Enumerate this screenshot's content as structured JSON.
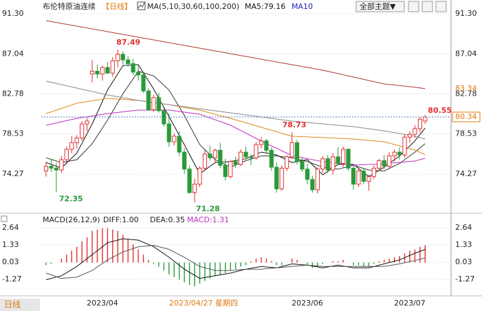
{
  "chart_data": {
    "type": "candlestick",
    "title": "布伦特原油连续",
    "period": "【日线】",
    "ma_legend": [
      "MA(5,10,30,60,100,200)",
      "MA5:79.16",
      "MA10"
    ],
    "theme_button": "全部主题▼",
    "macd_legend": [
      "MACD(26,12,9)",
      "DIFF:1.00",
      "DEA:0.35",
      "MACD:1.31"
    ],
    "period_tab": "日线",
    "crosshair_label": "2023/04/27 星期四",
    "categories": [
      null,
      null,
      null,
      null,
      null,
      null,
      null,
      null,
      null,
      null,
      null,
      "2023/04",
      null,
      null,
      null,
      null,
      null,
      null,
      null,
      null,
      null,
      null,
      null,
      null,
      null,
      null,
      null,
      null,
      null,
      null,
      null,
      null,
      null,
      null,
      null,
      null,
      null,
      null,
      null,
      null,
      null,
      null,
      null,
      null,
      null,
      null,
      null,
      null,
      null,
      null,
      null,
      "2023/06",
      null,
      null,
      null,
      null,
      null,
      null,
      null,
      null,
      null,
      null,
      null,
      null,
      null,
      null,
      null,
      null,
      null,
      null,
      null,
      "2023/07",
      null,
      null,
      null
    ],
    "open": [
      74.6,
      75.1,
      74.9,
      74.7,
      75.8,
      76.9,
      77.6,
      78.1,
      79.6,
      84.9,
      85.2,
      84.9,
      85.6,
      85.0,
      86.3,
      87.0,
      86.4,
      86.0,
      85.1,
      84.8,
      83.1,
      81.1,
      82.4,
      81.0,
      79.6,
      77.7,
      78.3,
      76.6,
      74.8,
      72.3,
      73.2,
      74.9,
      76.4,
      76.0,
      76.8,
      75.2,
      74.0,
      75.6,
      75.3,
      76.6,
      76.1,
      76.0,
      77.4,
      77.8,
      76.8,
      75.0,
      72.7,
      74.9,
      76.1,
      77.6,
      75.6,
      74.8,
      73.7,
      72.6,
      74.8,
      75.9,
      74.7,
      76.1,
      75.4,
      76.9,
      74.9,
      73.2,
      74.6,
      73.5,
      74.0,
      74.9,
      75.7,
      75.1,
      76.2,
      76.6,
      76.3,
      78.2,
      78.5,
      79.1,
      79.9
    ],
    "high": [
      75.6,
      75.9,
      75.5,
      76.2,
      77.2,
      78.3,
      78.4,
      79.9,
      80.3,
      86.4,
      85.9,
      85.8,
      86.2,
      86.7,
      87.49,
      87.3,
      86.8,
      86.5,
      85.9,
      85.1,
      83.4,
      82.7,
      82.9,
      81.4,
      80.7,
      78.6,
      78.8,
      77.0,
      75.2,
      73.8,
      75.1,
      76.8,
      77.3,
      77.0,
      77.6,
      75.9,
      75.8,
      76.1,
      76.9,
      77.2,
      76.4,
      77.7,
      78.2,
      78.0,
      77.1,
      75.5,
      75.2,
      76.3,
      78.73,
      77.9,
      76.0,
      75.4,
      74.1,
      75.0,
      76.2,
      76.3,
      76.5,
      77.1,
      77.2,
      77.0,
      75.1,
      74.9,
      74.8,
      74.2,
      75.2,
      75.9,
      76.3,
      76.6,
      76.9,
      77.1,
      78.5,
      78.8,
      79.5,
      80.3,
      80.55
    ],
    "low": [
      74.0,
      74.5,
      72.35,
      74.4,
      75.3,
      76.5,
      77.0,
      77.8,
      78.8,
      84.0,
      84.4,
      84.2,
      84.9,
      84.6,
      85.6,
      85.9,
      85.7,
      84.8,
      84.2,
      82.9,
      81.0,
      80.9,
      80.8,
      79.3,
      77.2,
      77.3,
      76.2,
      74.3,
      72.2,
      71.28,
      72.9,
      74.6,
      75.7,
      75.4,
      74.9,
      73.6,
      73.8,
      74.9,
      75.1,
      75.8,
      75.2,
      75.8,
      77.0,
      76.5,
      74.6,
      72.3,
      72.5,
      74.6,
      75.9,
      75.3,
      74.5,
      73.2,
      72.3,
      72.2,
      74.4,
      74.4,
      74.2,
      75.2,
      75.0,
      74.6,
      72.6,
      72.9,
      73.2,
      72.5,
      73.7,
      74.6,
      74.8,
      74.9,
      75.6,
      75.8,
      76.0,
      77.6,
      78.1,
      78.7,
      79.6
    ],
    "close": [
      75.1,
      74.9,
      74.7,
      75.8,
      76.9,
      77.6,
      78.1,
      79.6,
      79.9,
      85.2,
      84.9,
      85.6,
      85.0,
      86.3,
      87.0,
      86.4,
      86.0,
      85.1,
      84.8,
      83.1,
      81.1,
      82.4,
      81.0,
      79.6,
      77.7,
      78.3,
      76.6,
      74.8,
      72.3,
      73.2,
      74.9,
      76.4,
      76.0,
      76.8,
      75.2,
      74.0,
      75.6,
      75.3,
      76.6,
      76.1,
      76.0,
      77.4,
      77.8,
      76.8,
      75.0,
      72.7,
      74.9,
      76.1,
      77.6,
      75.6,
      74.8,
      73.7,
      72.6,
      74.8,
      75.9,
      74.7,
      76.1,
      75.4,
      76.9,
      74.9,
      73.2,
      74.6,
      73.5,
      74.0,
      74.9,
      75.7,
      75.1,
      76.2,
      76.6,
      76.3,
      78.2,
      78.5,
      79.1,
      80.1,
      80.34
    ],
    "up_color": "#e03030",
    "down_color": "#2a9a3a",
    "ylim": [
      70.47,
      92.18
    ],
    "yticks": [
      {
        "value": 91.3,
        "label": "91.30"
      },
      87.04,
      82.78,
      78.53,
      74.27
    ],
    "series": [
      {
        "color": "#111111",
        "x": [
          0,
          3,
          6,
          9,
          12,
          15,
          18,
          21,
          24,
          27,
          30,
          33,
          36,
          39,
          42,
          45,
          48,
          51,
          54,
          57,
          60,
          63,
          66,
          69,
          72,
          74
        ],
        "values": [
          75.5,
          74.9,
          76.5,
          79.6,
          83.2,
          85.8,
          85.9,
          83.3,
          80.4,
          77.4,
          74.3,
          75.5,
          75.6,
          75.9,
          76.6,
          76.3,
          75.5,
          75.8,
          74.2,
          75.3,
          75.3,
          74.0,
          75.0,
          76.2,
          77.8,
          79.16
        ]
      },
      {
        "color": "#333333",
        "x": [
          0,
          3,
          6,
          9,
          12,
          15,
          18,
          21,
          24,
          27,
          30,
          33,
          36,
          39,
          42,
          45,
          48,
          51,
          54,
          57,
          60,
          63,
          66,
          69,
          72,
          74
        ],
        "values": [
          76.0,
          75.5,
          75.8,
          77.5,
          80.0,
          82.8,
          85.2,
          84.7,
          83.2,
          80.5,
          77.4,
          75.8,
          75.0,
          75.7,
          76.2,
          76.2,
          76.0,
          75.6,
          75.0,
          74.8,
          75.2,
          74.7,
          74.6,
          75.4,
          76.6,
          77.5
        ]
      },
      {
        "color": "#c030c0",
        "x": [
          0,
          6,
          12,
          18,
          24,
          30,
          36,
          42,
          48,
          54,
          60,
          66,
          72,
          74
        ],
        "values": [
          79.46,
          80.19,
          80.7,
          81.07,
          81.07,
          80.63,
          79.46,
          77.78,
          76.24,
          75.59,
          75.22,
          75.37,
          75.66,
          75.95
        ]
      },
      {
        "color": "#e08a1a",
        "x": [
          0,
          6,
          12,
          18,
          24,
          30,
          36,
          42,
          48,
          54,
          60,
          66,
          72,
          74
        ],
        "values": [
          80.7,
          81.8,
          82.31,
          82.09,
          81.65,
          81.06,
          80.19,
          79.24,
          78.29,
          78.15,
          78.0,
          77.71,
          76.83,
          76.32
        ]
      },
      {
        "color": "#888888",
        "x": [
          0,
          6,
          12,
          18,
          24,
          30,
          36,
          42,
          48,
          54,
          60,
          66,
          72,
          74
        ],
        "values": [
          84.14,
          83.41,
          82.68,
          82.09,
          81.65,
          81.21,
          80.78,
          80.34,
          79.9,
          79.61,
          79.31,
          78.87,
          78.29,
          78.0
        ]
      },
      {
        "color": "#b03a2a",
        "x": [
          0,
          6,
          12,
          18,
          24,
          30,
          36,
          42,
          48,
          54,
          60,
          66,
          72,
          74
        ],
        "values": [
          90.57,
          89.99,
          89.4,
          88.82,
          88.23,
          87.65,
          87.06,
          86.48,
          85.89,
          85.31,
          84.58,
          83.85,
          83.5,
          83.34
        ]
      }
    ],
    "macd": {
      "ylim": [
        -2.42,
        3.47
      ],
      "yticks": [
        2.64,
        1.33,
        0.03,
        -1.27
      ],
      "histogram": [
        -0.2,
        -0.1,
        0.0,
        0.3,
        0.6,
        0.9,
        1.2,
        1.6,
        1.9,
        2.4,
        2.5,
        2.6,
        2.6,
        2.5,
        2.4,
        2.1,
        1.8,
        1.4,
        1.0,
        0.6,
        0.2,
        -0.1,
        -0.3,
        -0.6,
        -0.9,
        -1.1,
        -1.3,
        -1.5,
        -1.7,
        -1.8,
        -1.6,
        -1.4,
        -1.2,
        -1.0,
        -0.9,
        -0.8,
        -0.6,
        -0.5,
        -0.3,
        -0.2,
        0.1,
        0.3,
        0.4,
        0.3,
        0.1,
        -0.2,
        -0.2,
        0.0,
        0.3,
        0.2,
        0.0,
        -0.2,
        -0.4,
        -0.3,
        -0.1,
        0.0,
        0.1,
        0.1,
        0.2,
        0.0,
        -0.2,
        -0.2,
        -0.3,
        -0.3,
        -0.1,
        0.1,
        0.2,
        0.3,
        0.4,
        0.5,
        0.7,
        0.9,
        1.0,
        1.2,
        1.31
      ],
      "lines": [
        {
          "color": "#111111",
          "x": [
            0,
            3,
            6,
            9,
            12,
            15,
            18,
            21,
            24,
            27,
            30,
            33,
            36,
            39,
            42,
            45,
            48,
            51,
            54,
            57,
            60,
            63,
            66,
            69,
            72,
            74
          ],
          "values": [
            -1.3,
            -1.0,
            -0.3,
            0.6,
            1.5,
            1.8,
            1.7,
            1.2,
            0.4,
            -0.5,
            -1.2,
            -1.0,
            -0.8,
            -0.5,
            -0.3,
            -0.4,
            -0.1,
            -0.2,
            -0.4,
            -0.2,
            -0.4,
            -0.4,
            -0.1,
            0.2,
            0.7,
            1.0
          ]
        },
        {
          "color": "#555555",
          "x": [
            0,
            3,
            6,
            9,
            12,
            15,
            18,
            21,
            24,
            27,
            30,
            33,
            36,
            39,
            42,
            45,
            48,
            51,
            54,
            57,
            60,
            63,
            66,
            69,
            72,
            74
          ],
          "values": [
            -0.8,
            -1.2,
            -1.1,
            -0.6,
            0.2,
            0.8,
            1.2,
            1.3,
            1.0,
            0.4,
            -0.3,
            -0.6,
            -0.6,
            -0.5,
            -0.5,
            -0.4,
            -0.3,
            -0.2,
            -0.3,
            -0.3,
            -0.3,
            -0.3,
            -0.3,
            -0.1,
            0.15,
            0.35
          ]
        }
      ]
    }
  }
}
